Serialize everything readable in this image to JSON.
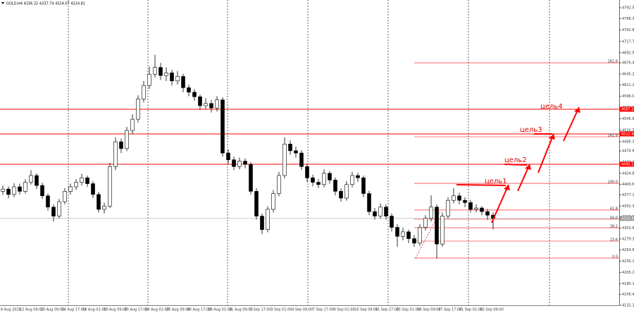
{
  "chart_data": {
    "type": "candlestick",
    "title": "GOLD,H4  4336.32 4337.74 4324.07 4324.81",
    "open": [
      4385,
      4390,
      4378,
      4395,
      4385,
      4405,
      4420,
      4398,
      4375,
      4350,
      4330,
      4362,
      4385,
      4395,
      4405,
      4415,
      4402,
      4378,
      4345,
      4352,
      4440,
      4495,
      4480,
      4520,
      4545,
      4590,
      4620,
      4645,
      4660,
      4642,
      4648,
      4630,
      4640,
      4615,
      4605,
      4595,
      4575,
      4580,
      4570,
      4588,
      4470,
      4455,
      4440,
      4452,
      4445,
      4385,
      4330,
      4300,
      4345,
      4380,
      4420,
      4490,
      4475,
      4470,
      4440,
      4415,
      4405,
      4400,
      4425,
      4410,
      4385,
      4370,
      4400,
      4420,
      4415,
      4380,
      4340,
      4330,
      4350,
      4330,
      4305,
      4285,
      4295,
      4280,
      4270,
      4305,
      4325,
      4350,
      4268,
      4330,
      4365,
      4375,
      4365,
      4360,
      4345,
      4348,
      4340,
      4332
    ],
    "high": [
      4398,
      4396,
      4403,
      4402,
      4412,
      4432,
      4425,
      4404,
      4380,
      4356,
      4368,
      4392,
      4402,
      4412,
      4424,
      4420,
      4408,
      4384,
      4360,
      4448,
      4505,
      4502,
      4528,
      4556,
      4598,
      4630,
      4662,
      4688,
      4670,
      4660,
      4655,
      4652,
      4646,
      4622,
      4612,
      4600,
      4592,
      4588,
      4596,
      4594,
      4478,
      4462,
      4460,
      4458,
      4450,
      4392,
      4336,
      4352,
      4388,
      4428,
      4505,
      4498,
      4484,
      4476,
      4446,
      4422,
      4412,
      4434,
      4430,
      4416,
      4392,
      4408,
      4428,
      4426,
      4420,
      4386,
      4348,
      4358,
      4356,
      4336,
      4312,
      4304,
      4300,
      4288,
      4312,
      4332,
      4376,
      4356,
      4338,
      4372,
      4392,
      4382,
      4372,
      4366,
      4356,
      4352,
      4346,
      4338
    ],
    "low": [
      4377,
      4370,
      4372,
      4378,
      4380,
      4400,
      4390,
      4368,
      4342,
      4318,
      4325,
      4356,
      4378,
      4388,
      4398,
      4395,
      4370,
      4338,
      4336,
      4348,
      4432,
      4470,
      4474,
      4512,
      4538,
      4582,
      4612,
      4638,
      4632,
      4630,
      4620,
      4622,
      4605,
      4596,
      4586,
      4566,
      4568,
      4560,
      4562,
      4462,
      4446,
      4432,
      4434,
      4436,
      4378,
      4322,
      4290,
      4294,
      4338,
      4374,
      4414,
      4466,
      4460,
      4432,
      4406,
      4396,
      4392,
      4394,
      4402,
      4376,
      4362,
      4364,
      4394,
      4406,
      4372,
      4332,
      4322,
      4324,
      4322,
      4296,
      4262,
      4276,
      4270,
      4262,
      4264,
      4298,
      4318,
      4236,
      4262,
      4324,
      4358,
      4356,
      4350,
      4338,
      4338,
      4332,
      4322,
      4300
    ],
    "close": [
      4390,
      4378,
      4395,
      4385,
      4405,
      4420,
      4398,
      4375,
      4350,
      4330,
      4362,
      4385,
      4395,
      4405,
      4415,
      4402,
      4378,
      4345,
      4352,
      4440,
      4495,
      4480,
      4520,
      4545,
      4590,
      4620,
      4645,
      4660,
      4642,
      4648,
      4630,
      4640,
      4615,
      4605,
      4595,
      4575,
      4580,
      4570,
      4588,
      4470,
      4455,
      4440,
      4452,
      4445,
      4385,
      4330,
      4300,
      4345,
      4380,
      4420,
      4490,
      4475,
      4470,
      4440,
      4415,
      4405,
      4400,
      4425,
      4410,
      4385,
      4370,
      4400,
      4420,
      4415,
      4380,
      4340,
      4330,
      4350,
      4330,
      4305,
      4285,
      4295,
      4280,
      4270,
      4305,
      4325,
      4350,
      4268,
      4330,
      4365,
      4375,
      4365,
      4360,
      4345,
      4348,
      4340,
      4332,
      4325
    ],
    "x_labels": [
      "8 Aug 2026",
      "12 Aug 09:00",
      "13 Aug 09:00",
      "14 Aug 17:00",
      "18 Aug 01:00",
      "19 Aug 09:00",
      "20 Aug 17:00",
      "24 Aug 01:00",
      "25 Aug 09:00",
      "26 Aug 17:00",
      "28 Aug 01:00",
      "31 Aug 09:00",
      "1 Sep 17:00",
      "3 Sep 01:00",
      "4 Sep 09:00",
      "7 Sep 17:00",
      "9 Sep 01:00",
      "10 Sep 09:00",
      "11 Sep 17:00",
      "15 Sep 01:00",
      "16 Sep 09:00",
      "17 Sep 17:00",
      "21 Sep 01:00",
      "22 Sep 09:00"
    ],
    "ylim": [
      4132.1,
      4809.7
    ],
    "yticks": [
      {
        "value": 4792.5,
        "label": "4792.50"
      },
      4768.35,
      4742.85,
      {
        "value": 4717.7,
        "label": "4717.70"
      },
      4692.55,
      {
        "value": 4670.4,
        "label": "4670.40"
      },
      4645.25,
      4621.15,
      {
        "value": 4596,
        "label": "4596.00"
      },
      4570.85,
      4545.65,
      {
        "value": 4520.5,
        "label": "4520.50"
      },
      {
        "value": 4495.3,
        "label": "4495.30"
      },
      {
        "value": 4474.6,
        "label": "4474.60"
      },
      4449.45,
      4424.85,
      {
        "value": 4400.6,
        "label": "4400.60"
      },
      4377.15,
      4352.35,
      {
        "value": 4328.6,
        "label": "4328.60"
      },
      4303.65,
      4279.35,
      {
        "value": 4254.6,
        "label": "4254.60"
      },
      4230.15,
      4205.25,
      {
        "value": 4180.1,
        "label": "4180.10"
      },
      4156.45,
      {
        "value": 4132.1,
        "label": "4132.10"
      }
    ],
    "levels": [
      {
        "value": 4567.2,
        "label": "4567.20"
      },
      {
        "value": 4512.4,
        "label": "4512.40"
      },
      {
        "value": 4445.1,
        "label": "4445.10"
      }
    ],
    "current_price": 4324.81,
    "fib_levels": [
      {
        "label": "261.8",
        "price": 4670.4
      },
      {
        "label": "161.8",
        "price": 4506.1
      },
      {
        "label": "100.0",
        "price": 4402.8
      },
      {
        "label": "61.8",
        "price": 4343.4
      },
      {
        "label": "50.0",
        "price": 4323.0
      },
      {
        "label": "38.2",
        "price": 4304.2
      },
      {
        "label": "23.6",
        "price": 4274.5
      },
      {
        "label": "0.0",
        "price": 4236.9
      }
    ],
    "annotations": [
      "цель1",
      "цель2",
      "цель3",
      "цель4"
    ],
    "level_color": "#ff0000"
  }
}
